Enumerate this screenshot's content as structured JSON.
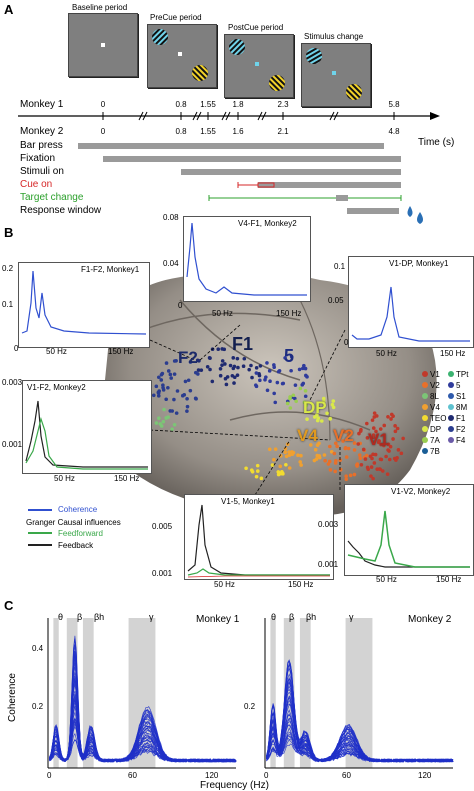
{
  "panelA": {
    "letter": "A",
    "periods": [
      "Baseline period",
      "PreCue period",
      "PostCue period",
      "Stimulus change"
    ],
    "monkey1": {
      "label": "Monkey 1",
      "ticks": [
        "0",
        "0.8",
        "1.55",
        "1.8",
        "2.3",
        "5.8"
      ]
    },
    "monkey2": {
      "label": "Monkey 2",
      "ticks": [
        "0",
        "0.8",
        "1.55",
        "1.6",
        "2.1",
        "4.8"
      ]
    },
    "time_label": "Time (s)",
    "rows": [
      "Bar press",
      "Fixation",
      "Stimuli on",
      "Cue on",
      "Target change",
      "Response window"
    ],
    "colors": {
      "cue": "#d62728",
      "target": "#2ca02c",
      "bar": "#9a9a9a"
    }
  },
  "panelB": {
    "letter": "B",
    "insets": [
      {
        "title": "F1-F2, Monkey1",
        "yticks": [
          "0.2",
          "0.1",
          "0"
        ],
        "xticks": [
          "50 Hz",
          "150 Hz"
        ]
      },
      {
        "title": "V4-F1, Monkey2",
        "yticks": [
          "0.08",
          "0.04",
          "0"
        ],
        "xticks": [
          "50 Hz",
          "150 Hz"
        ]
      },
      {
        "title": "V1-DP, Monkey1",
        "yticks": [
          "0.1",
          "0.05",
          "0"
        ],
        "xticks": [
          "50 Hz",
          "150 Hz"
        ]
      },
      {
        "title": "V1-F2, Monkey2",
        "yticks": [
          "0.003",
          "0.001"
        ],
        "xticks": [
          "50 Hz",
          "150 Hz"
        ]
      },
      {
        "title": "V1-5, Monkey1",
        "yticks": [
          "0.005",
          "0.001"
        ],
        "xticks": [
          "50 Hz",
          "150 Hz"
        ]
      },
      {
        "title": "V1-V2, Monkey2",
        "yticks": [
          "0.003",
          "0.001"
        ],
        "xticks": [
          "50 Hz",
          "150 Hz"
        ]
      }
    ],
    "brain_labels": [
      "F2",
      "F1",
      "5",
      "DP",
      "V4",
      "V2",
      "V1"
    ],
    "areas": [
      {
        "name": "V1",
        "color": "#c0392b"
      },
      {
        "name": "TPt",
        "color": "#3cb371"
      },
      {
        "name": "V2",
        "color": "#e8702a"
      },
      {
        "name": "5",
        "color": "#2f3b9c"
      },
      {
        "name": "8L",
        "color": "#7cc576"
      },
      {
        "name": "S1",
        "color": "#2e5aac"
      },
      {
        "name": "V4",
        "color": "#f0a030"
      },
      {
        "name": "8M",
        "color": "#5ec2d0"
      },
      {
        "name": "TEO",
        "color": "#f2dc30"
      },
      {
        "name": "F1",
        "color": "#1f2a70"
      },
      {
        "name": "DP",
        "color": "#d9e84a"
      },
      {
        "name": "F2",
        "color": "#2b3d8f"
      },
      {
        "name": "7A",
        "color": "#9acd50"
      },
      {
        "name": "F4",
        "color": "#6a5aa8"
      },
      {
        "name": "7B",
        "color": "#1a5e96"
      }
    ],
    "legend": {
      "coherence": "Coherence",
      "gc_title": "Granger Causal influences",
      "feedforward": "Feedforward",
      "feedback": "Feedback",
      "colors": {
        "coherence": "#3050d0",
        "feedforward": "#3aa84a",
        "feedback": "#222222"
      }
    }
  },
  "panelC": {
    "letter": "C",
    "ylabel": "Coherence",
    "xlabel": "Frequency (Hz)",
    "bands": [
      "θ",
      "β",
      "βh",
      "γ"
    ],
    "monkey1": {
      "title": "Monkey 1",
      "yticks": [
        "0.4",
        "0.2"
      ],
      "xticks": [
        "0",
        "60",
        "120"
      ]
    },
    "monkey2": {
      "title": "Monkey 2",
      "yticks": [
        "0.2"
      ],
      "xticks": [
        "0",
        "60",
        "120"
      ]
    }
  }
}
